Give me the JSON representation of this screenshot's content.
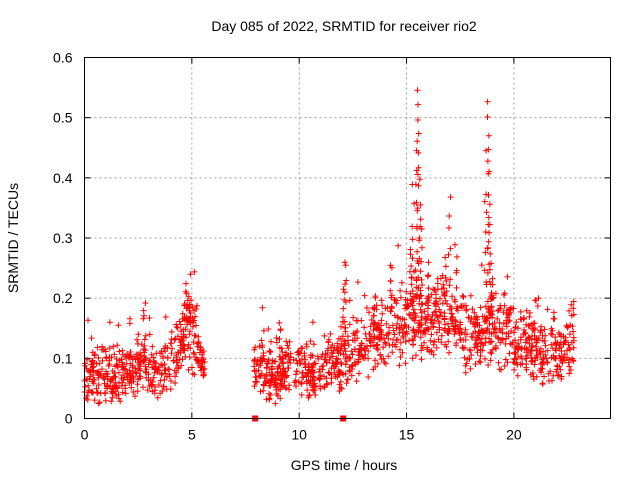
{
  "chart_data": {
    "type": "scatter",
    "title": "Day 085 of 2022, SRMTID for receiver rio2",
    "xlabel": "GPS time / hours",
    "ylabel": "SRMTID / TECUs",
    "xlim": [
      0,
      24.5
    ],
    "ylim": [
      0,
      0.6
    ],
    "xticks": [
      0,
      5,
      10,
      15,
      20
    ],
    "yticks": [
      0,
      0.1,
      0.2,
      0.3,
      0.4,
      0.5,
      0.6
    ],
    "xtick_labels": [
      "0",
      "5",
      "10",
      "15",
      "20"
    ],
    "ytick_labels": [
      "0",
      "0.1",
      "0.2",
      "0.3",
      "0.4",
      "0.5",
      "0.6"
    ],
    "grid": true,
    "marker": "plus",
    "color": "#ff0000",
    "series": [
      {
        "name": "rio2 SRMTID",
        "envelope": [
          [
            0.0,
            0.065
          ],
          [
            0.5,
            0.07
          ],
          [
            1.0,
            0.075
          ],
          [
            1.5,
            0.07
          ],
          [
            2.0,
            0.07
          ],
          [
            2.5,
            0.085
          ],
          [
            3.0,
            0.075
          ],
          [
            3.5,
            0.08
          ],
          [
            4.0,
            0.09
          ],
          [
            4.5,
            0.12
          ],
          [
            4.8,
            0.15
          ],
          [
            5.0,
            0.14
          ],
          [
            5.3,
            0.11
          ],
          [
            5.6,
            0.085
          ],
          [
            7.9,
            0.075
          ],
          [
            8.5,
            0.07
          ],
          [
            9.0,
            0.065
          ],
          [
            9.5,
            0.08
          ],
          [
            10.0,
            0.08
          ],
          [
            10.5,
            0.085
          ],
          [
            11.0,
            0.075
          ],
          [
            11.5,
            0.09
          ],
          [
            12.0,
            0.1
          ],
          [
            12.5,
            0.11
          ],
          [
            13.0,
            0.13
          ],
          [
            13.5,
            0.14
          ],
          [
            14.0,
            0.15
          ],
          [
            14.5,
            0.16
          ],
          [
            15.0,
            0.16
          ],
          [
            15.5,
            0.17
          ],
          [
            16.0,
            0.16
          ],
          [
            16.5,
            0.17
          ],
          [
            17.0,
            0.16
          ],
          [
            17.5,
            0.15
          ],
          [
            18.0,
            0.14
          ],
          [
            18.5,
            0.13
          ],
          [
            19.0,
            0.15
          ],
          [
            19.5,
            0.14
          ],
          [
            20.0,
            0.13
          ],
          [
            20.5,
            0.12
          ],
          [
            21.0,
            0.12
          ],
          [
            21.5,
            0.11
          ],
          [
            22.0,
            0.115
          ],
          [
            22.5,
            0.12
          ],
          [
            22.8,
            0.14
          ]
        ],
        "spikes": [
          [
            15.45,
            0.45
          ],
          [
            15.5,
            0.55
          ],
          [
            15.55,
            0.52
          ],
          [
            15.6,
            0.42
          ],
          [
            15.3,
            0.38
          ],
          [
            15.7,
            0.33
          ],
          [
            15.2,
            0.29
          ],
          [
            16.0,
            0.25
          ],
          [
            16.4,
            0.23
          ],
          [
            16.8,
            0.26
          ],
          [
            17.0,
            0.37
          ],
          [
            17.3,
            0.28
          ],
          [
            18.75,
            0.5
          ],
          [
            18.8,
            0.52
          ],
          [
            18.85,
            0.44
          ],
          [
            18.7,
            0.37
          ],
          [
            18.9,
            0.3
          ],
          [
            19.0,
            0.24
          ],
          [
            12.15,
            0.265
          ],
          [
            12.1,
            0.22
          ],
          [
            4.7,
            0.21
          ],
          [
            4.9,
            0.2
          ],
          [
            2.8,
            0.185
          ],
          [
            14.3,
            0.26
          ],
          [
            13.5,
            0.21
          ],
          [
            9.1,
            0.16
          ],
          [
            8.3,
            0.14
          ]
        ],
        "point_count": 1600
      }
    ],
    "markers_on_axis": [
      7.95,
      12.05
    ]
  }
}
